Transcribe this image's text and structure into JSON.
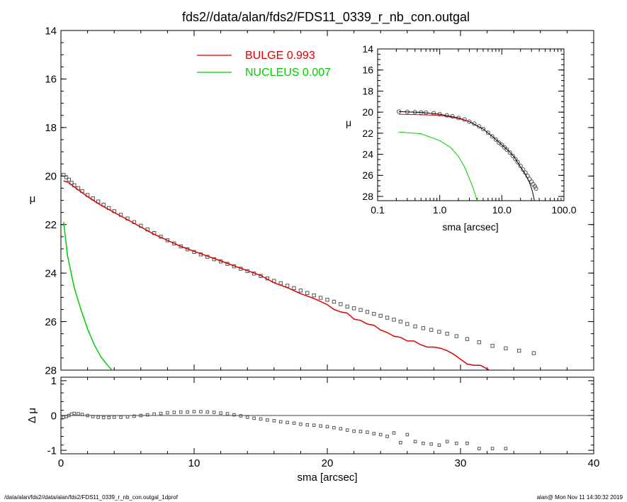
{
  "title": "fds2//data/alan/fds2/FDS11_0339_r_nb_con.outgal",
  "footer_left": "/data/alan/fds2//data/alan/fds2/FDS11_0339_r_nb_con.outgal_1dprof",
  "footer_right": "alan@  Mon Nov 11 14:30:32 2019",
  "colors": {
    "data": "#555555",
    "bulge": "#dd0000",
    "nucleus": "#00cc00",
    "axis": "#000000"
  },
  "chart_data": [
    {
      "type": "line",
      "id": "main",
      "xlabel": "sma [arcsec]",
      "ylabel": "μ",
      "xlim": [
        0,
        40
      ],
      "ylim": [
        28,
        14
      ],
      "xticks": [
        0,
        10,
        20,
        30,
        40
      ],
      "yticks": [
        14,
        16,
        18,
        20,
        22,
        24,
        26,
        28
      ],
      "legend": [
        {
          "name": "BULGE",
          "value": "0.993",
          "color": "#dd0000"
        },
        {
          "name": "NUCLEUS",
          "value": "0.007",
          "color": "#00cc00"
        }
      ],
      "series": [
        {
          "name": "data",
          "style": "squares",
          "x": [
            0.2,
            0.4,
            0.6,
            0.8,
            1.0,
            1.3,
            1.6,
            2.0,
            2.4,
            2.8,
            3.2,
            3.6,
            4.0,
            4.5,
            5.0,
            5.5,
            6.0,
            6.5,
            7.0,
            7.5,
            8.0,
            8.5,
            9.0,
            9.5,
            10.0,
            10.5,
            11.0,
            11.5,
            12.0,
            12.5,
            13.0,
            13.5,
            14.0,
            14.5,
            15.0,
            15.5,
            16.0,
            16.5,
            17.0,
            17.5,
            18.0,
            18.5,
            19.0,
            19.5,
            20.0,
            20.5,
            21.0,
            21.5,
            22.0,
            22.5,
            23.0,
            23.5,
            24.0,
            24.5,
            25.0,
            25.5,
            26.0,
            26.6,
            27.2,
            27.8,
            28.4,
            29.0,
            29.7,
            30.5,
            31.4,
            32.4,
            33.4,
            34.4,
            35.5
          ],
          "y": [
            19.95,
            20.05,
            20.15,
            20.28,
            20.38,
            20.5,
            20.62,
            20.78,
            20.92,
            21.05,
            21.18,
            21.32,
            21.45,
            21.6,
            21.75,
            21.9,
            22.05,
            22.2,
            22.35,
            22.5,
            22.65,
            22.78,
            22.9,
            23.02,
            23.13,
            23.23,
            23.33,
            23.43,
            23.52,
            23.62,
            23.72,
            23.82,
            23.92,
            24.02,
            24.12,
            24.22,
            24.32,
            24.42,
            24.52,
            24.62,
            24.72,
            24.82,
            24.92,
            25.02,
            25.1,
            25.18,
            25.28,
            25.38,
            25.45,
            25.52,
            25.6,
            25.68,
            25.76,
            25.84,
            25.92,
            26.0,
            26.1,
            26.2,
            26.27,
            26.34,
            26.42,
            26.5,
            26.6,
            26.72,
            26.85,
            27.0,
            27.1,
            27.2,
            27.3
          ]
        },
        {
          "name": "BULGE",
          "style": "line",
          "x": [
            0.2,
            0.5,
            1.0,
            2.0,
            3.0,
            4.0,
            5.0,
            6.0,
            7.0,
            8.0,
            9.0,
            10.0,
            11.0,
            12.0,
            13.0,
            14.0,
            15.0,
            16.0,
            17.0,
            18.0,
            19.0,
            20.0,
            20.5,
            21.0,
            21.5,
            22.0,
            22.5,
            23.0,
            23.5,
            24.0,
            24.5,
            25.0,
            25.5,
            26.0,
            26.5,
            27.0,
            27.5,
            28.0,
            28.5,
            29.0,
            29.5,
            30.0,
            30.5,
            31.0,
            31.5,
            32.0,
            32.5,
            33.0,
            33.5
          ],
          "y": [
            20.2,
            20.25,
            20.45,
            20.85,
            21.2,
            21.5,
            21.8,
            22.1,
            22.4,
            22.65,
            22.9,
            23.1,
            23.3,
            23.5,
            23.7,
            23.9,
            24.1,
            24.4,
            24.6,
            24.85,
            25.05,
            25.3,
            25.5,
            25.6,
            25.65,
            25.9,
            25.95,
            26.1,
            26.15,
            26.35,
            26.45,
            26.6,
            26.65,
            26.8,
            26.8,
            26.95,
            27.05,
            27.05,
            27.1,
            27.2,
            27.35,
            27.55,
            27.75,
            27.8,
            27.8,
            27.95,
            28.1,
            28.1,
            28.0
          ]
        },
        {
          "name": "NUCLEUS",
          "style": "line",
          "x": [
            0.2,
            0.5,
            1.0,
            1.5,
            2.0,
            2.5,
            3.0,
            3.5,
            4.0
          ],
          "y": [
            21.9,
            23.3,
            24.6,
            25.5,
            26.3,
            26.95,
            27.45,
            27.8,
            28.1
          ]
        }
      ]
    },
    {
      "type": "scatter",
      "id": "residual",
      "xlabel": "sma [arcsec]",
      "ylabel": "Δ μ",
      "xlim": [
        0,
        40
      ],
      "ylim": [
        -1.1,
        1.1
      ],
      "xticks": [
        0,
        10,
        20,
        30,
        40
      ],
      "yticks": [
        -1,
        0,
        1
      ],
      "series": [
        {
          "name": "residual",
          "style": "squares",
          "x": [
            0.2,
            0.4,
            0.6,
            0.8,
            1.0,
            1.3,
            1.6,
            2.0,
            2.4,
            2.8,
            3.2,
            3.6,
            4.0,
            4.5,
            5.0,
            5.5,
            6.0,
            6.5,
            7.0,
            7.5,
            8.0,
            8.5,
            9.0,
            9.5,
            10.0,
            10.5,
            11.0,
            11.5,
            12.0,
            12.5,
            13.0,
            13.5,
            14.0,
            14.5,
            15.0,
            15.5,
            16.0,
            16.5,
            17.0,
            17.5,
            18.0,
            18.5,
            19.0,
            19.5,
            20.0,
            20.5,
            21.0,
            21.5,
            22.0,
            22.5,
            23.0,
            23.5,
            24.0,
            24.5,
            25.0,
            25.5,
            26.0,
            26.6,
            27.2,
            27.8,
            28.4,
            29.0,
            29.7,
            30.5,
            31.4,
            32.4,
            33.4
          ],
          "y": [
            -0.05,
            -0.03,
            0.0,
            0.04,
            0.06,
            0.05,
            0.03,
            0.0,
            -0.03,
            -0.05,
            -0.06,
            -0.06,
            -0.05,
            -0.05,
            -0.04,
            -0.02,
            0.0,
            0.02,
            0.04,
            0.06,
            0.08,
            0.09,
            0.1,
            0.1,
            0.11,
            0.11,
            0.1,
            0.09,
            0.07,
            0.05,
            0.02,
            -0.01,
            -0.05,
            -0.08,
            -0.1,
            -0.13,
            -0.15,
            -0.18,
            -0.2,
            -0.22,
            -0.25,
            -0.27,
            -0.28,
            -0.3,
            -0.32,
            -0.35,
            -0.38,
            -0.42,
            -0.45,
            -0.46,
            -0.48,
            -0.52,
            -0.55,
            -0.6,
            -0.5,
            -0.78,
            -0.55,
            -0.75,
            -0.8,
            -0.82,
            -0.85,
            -0.75,
            -0.8,
            -0.8,
            -0.95,
            -0.95,
            -0.95
          ]
        }
      ]
    },
    {
      "type": "line",
      "id": "inset",
      "xscale": "log",
      "xlabel": "sma [arcsec]",
      "ylabel": "μ",
      "xlim": [
        0.1,
        100
      ],
      "ylim": [
        28.4,
        14
      ],
      "xticks": [
        0.1,
        1.0,
        10.0,
        100.0
      ],
      "xticklabels": [
        "0.1",
        "1.0",
        "10.0",
        "100.0"
      ],
      "yticks": [
        14,
        16,
        18,
        20,
        22,
        24,
        26,
        28
      ],
      "series": [
        {
          "name": "data",
          "style": "circles",
          "x": [
            0.22,
            0.3,
            0.4,
            0.5,
            0.6,
            0.8,
            1.0,
            1.3,
            1.6,
            2.0,
            2.5,
            3.0,
            3.6,
            4.3,
            5.0,
            6.0,
            7.0,
            8.0,
            9.0,
            10.0,
            11.0,
            12.0,
            13.5,
            15.0,
            16.5,
            18.0,
            20.0,
            22.0,
            24.0,
            26.0,
            28.0,
            30.0,
            32.0,
            34.0,
            35.5
          ],
          "y": [
            19.95,
            19.97,
            20.0,
            20.03,
            20.05,
            20.1,
            20.2,
            20.3,
            20.4,
            20.55,
            20.7,
            20.9,
            21.1,
            21.35,
            21.6,
            21.95,
            22.3,
            22.6,
            22.9,
            23.1,
            23.35,
            23.55,
            23.85,
            24.15,
            24.45,
            24.75,
            25.1,
            25.45,
            25.75,
            26.05,
            26.35,
            26.6,
            26.85,
            27.05,
            27.25
          ]
        },
        {
          "name": "model",
          "style": "line",
          "x": [
            0.22,
            0.5,
            1.0,
            2.0,
            3.0,
            5.0,
            7.0,
            10.0,
            13.0,
            16.0,
            20.0,
            24.0,
            28.0,
            31.0,
            33.5
          ],
          "y": [
            19.95,
            20.02,
            20.2,
            20.55,
            20.9,
            21.6,
            22.3,
            23.1,
            23.7,
            24.3,
            25.2,
            25.9,
            26.7,
            27.5,
            28.4
          ]
        },
        {
          "name": "BULGE",
          "style": "line",
          "x": [
            0.22,
            0.5,
            1.0,
            2.0,
            3.0
          ],
          "y": [
            20.2,
            20.25,
            20.3,
            20.6,
            20.9
          ]
        },
        {
          "name": "NUCLEUS",
          "style": "line",
          "x": [
            0.22,
            0.5,
            1.0,
            1.5,
            2.0,
            2.5,
            3.0,
            3.5,
            4.0
          ],
          "y": [
            21.9,
            22.05,
            22.7,
            23.35,
            24.2,
            25.2,
            26.3,
            27.3,
            28.4
          ]
        }
      ]
    }
  ]
}
